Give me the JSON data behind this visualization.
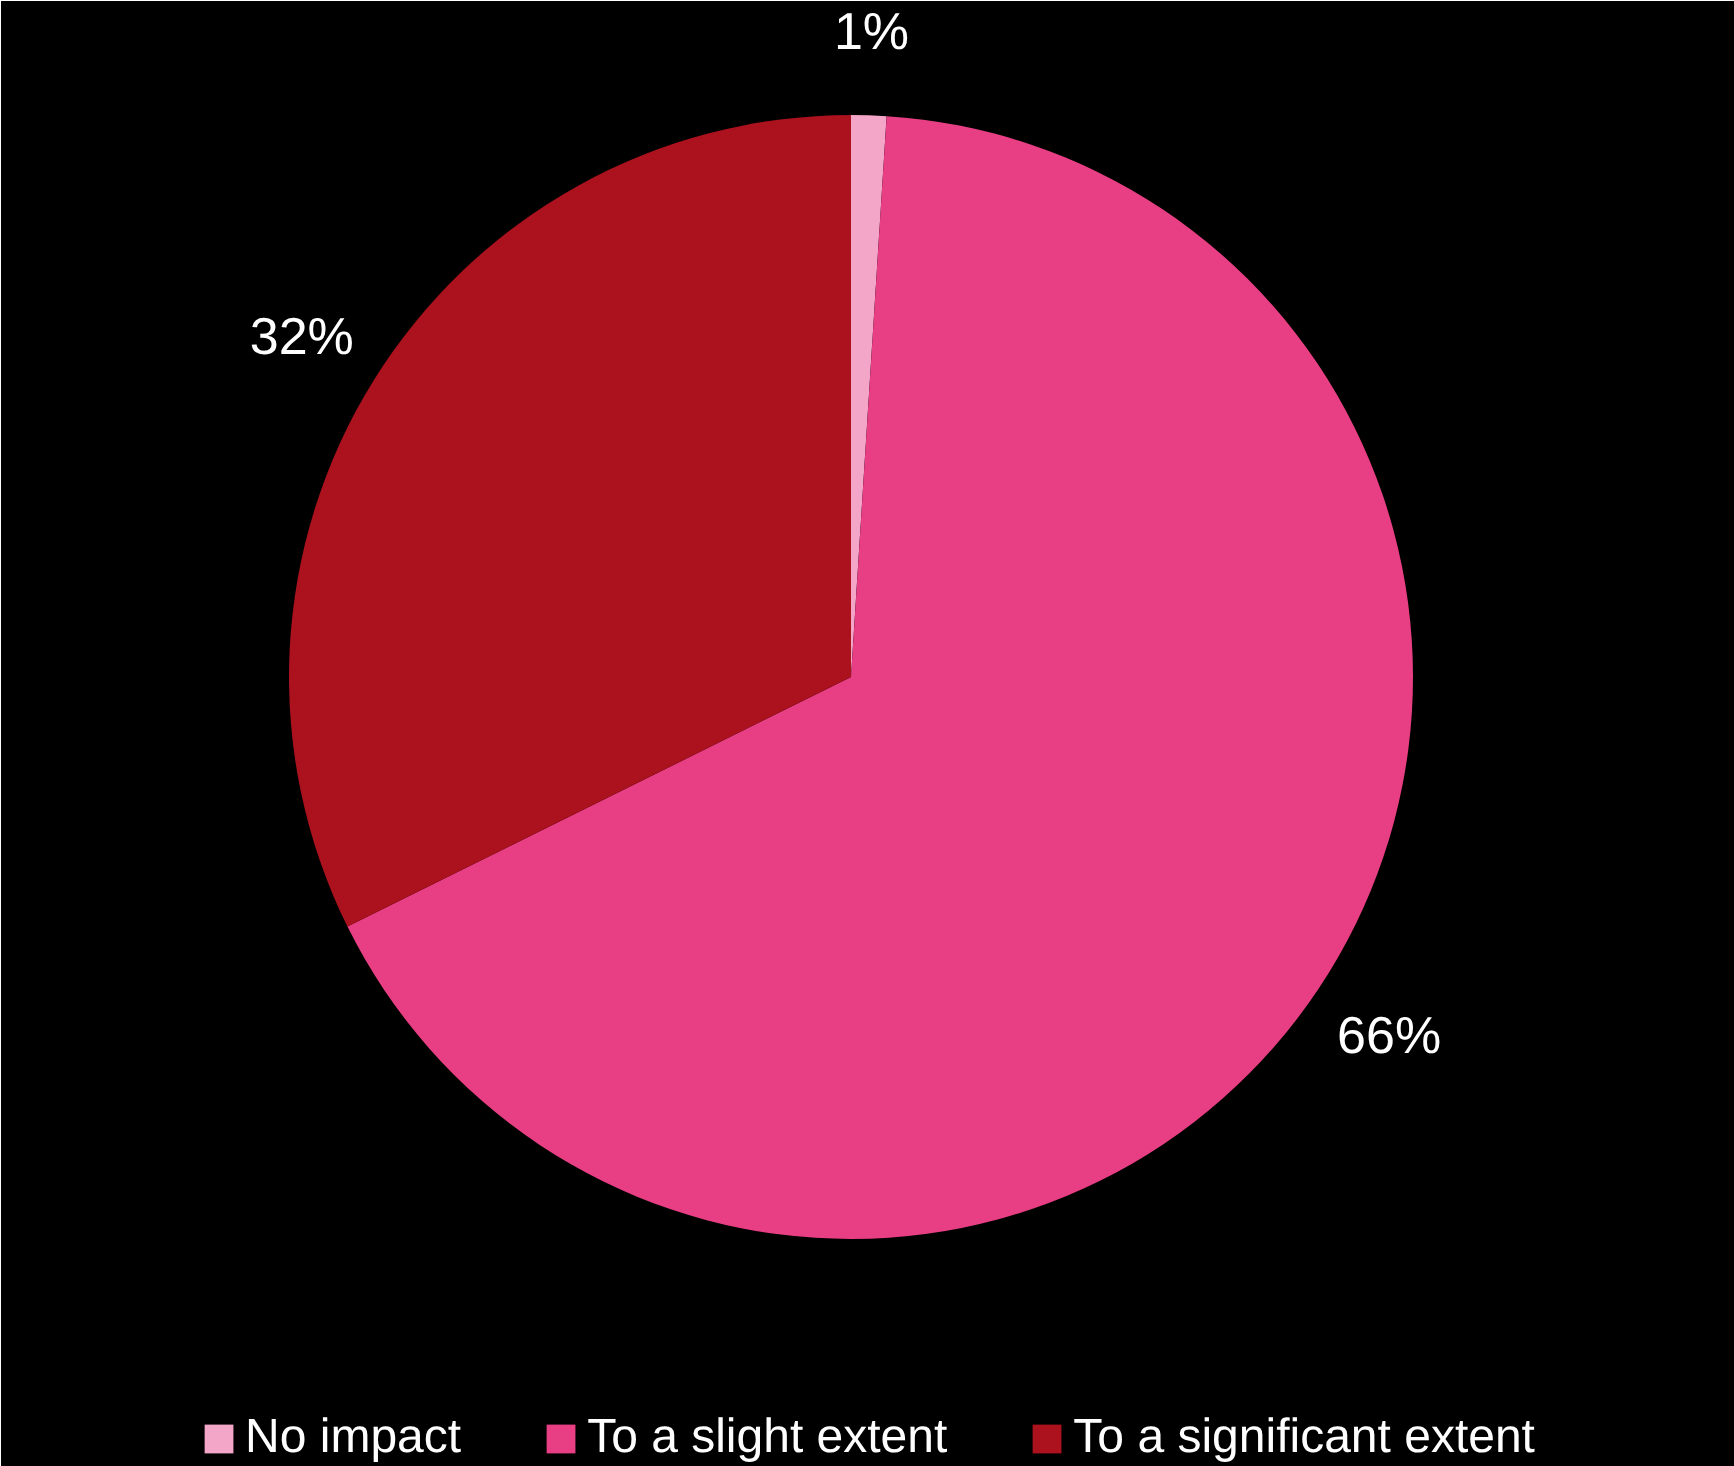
{
  "chart_data": {
    "type": "pie",
    "categories": [
      "No impact",
      "To a slight extent",
      "To a significant extent"
    ],
    "values": [
      1,
      66,
      32
    ],
    "colors": [
      "#f4a6c8",
      "#e83e84",
      "#ac111e"
    ],
    "value_labels": [
      "1%",
      "66%",
      "32%"
    ],
    "legend": "bottom"
  }
}
